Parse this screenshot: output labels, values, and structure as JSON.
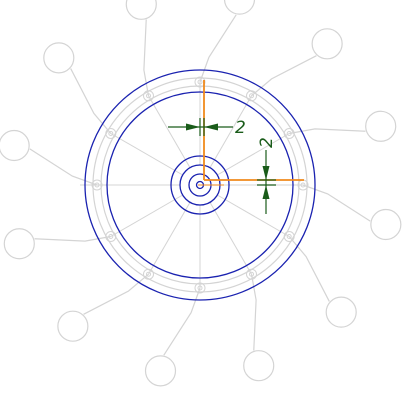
{
  "colors": {
    "background": "#ffffff",
    "ghost": "#d4d4d4",
    "blue": "#1a22b0",
    "orange": "#f08a1c",
    "green": "#1a5c1a"
  },
  "dimensions": {
    "horizontal_offset_label": "2",
    "vertical_offset_label": "2"
  },
  "spokes": {
    "count": 12
  }
}
